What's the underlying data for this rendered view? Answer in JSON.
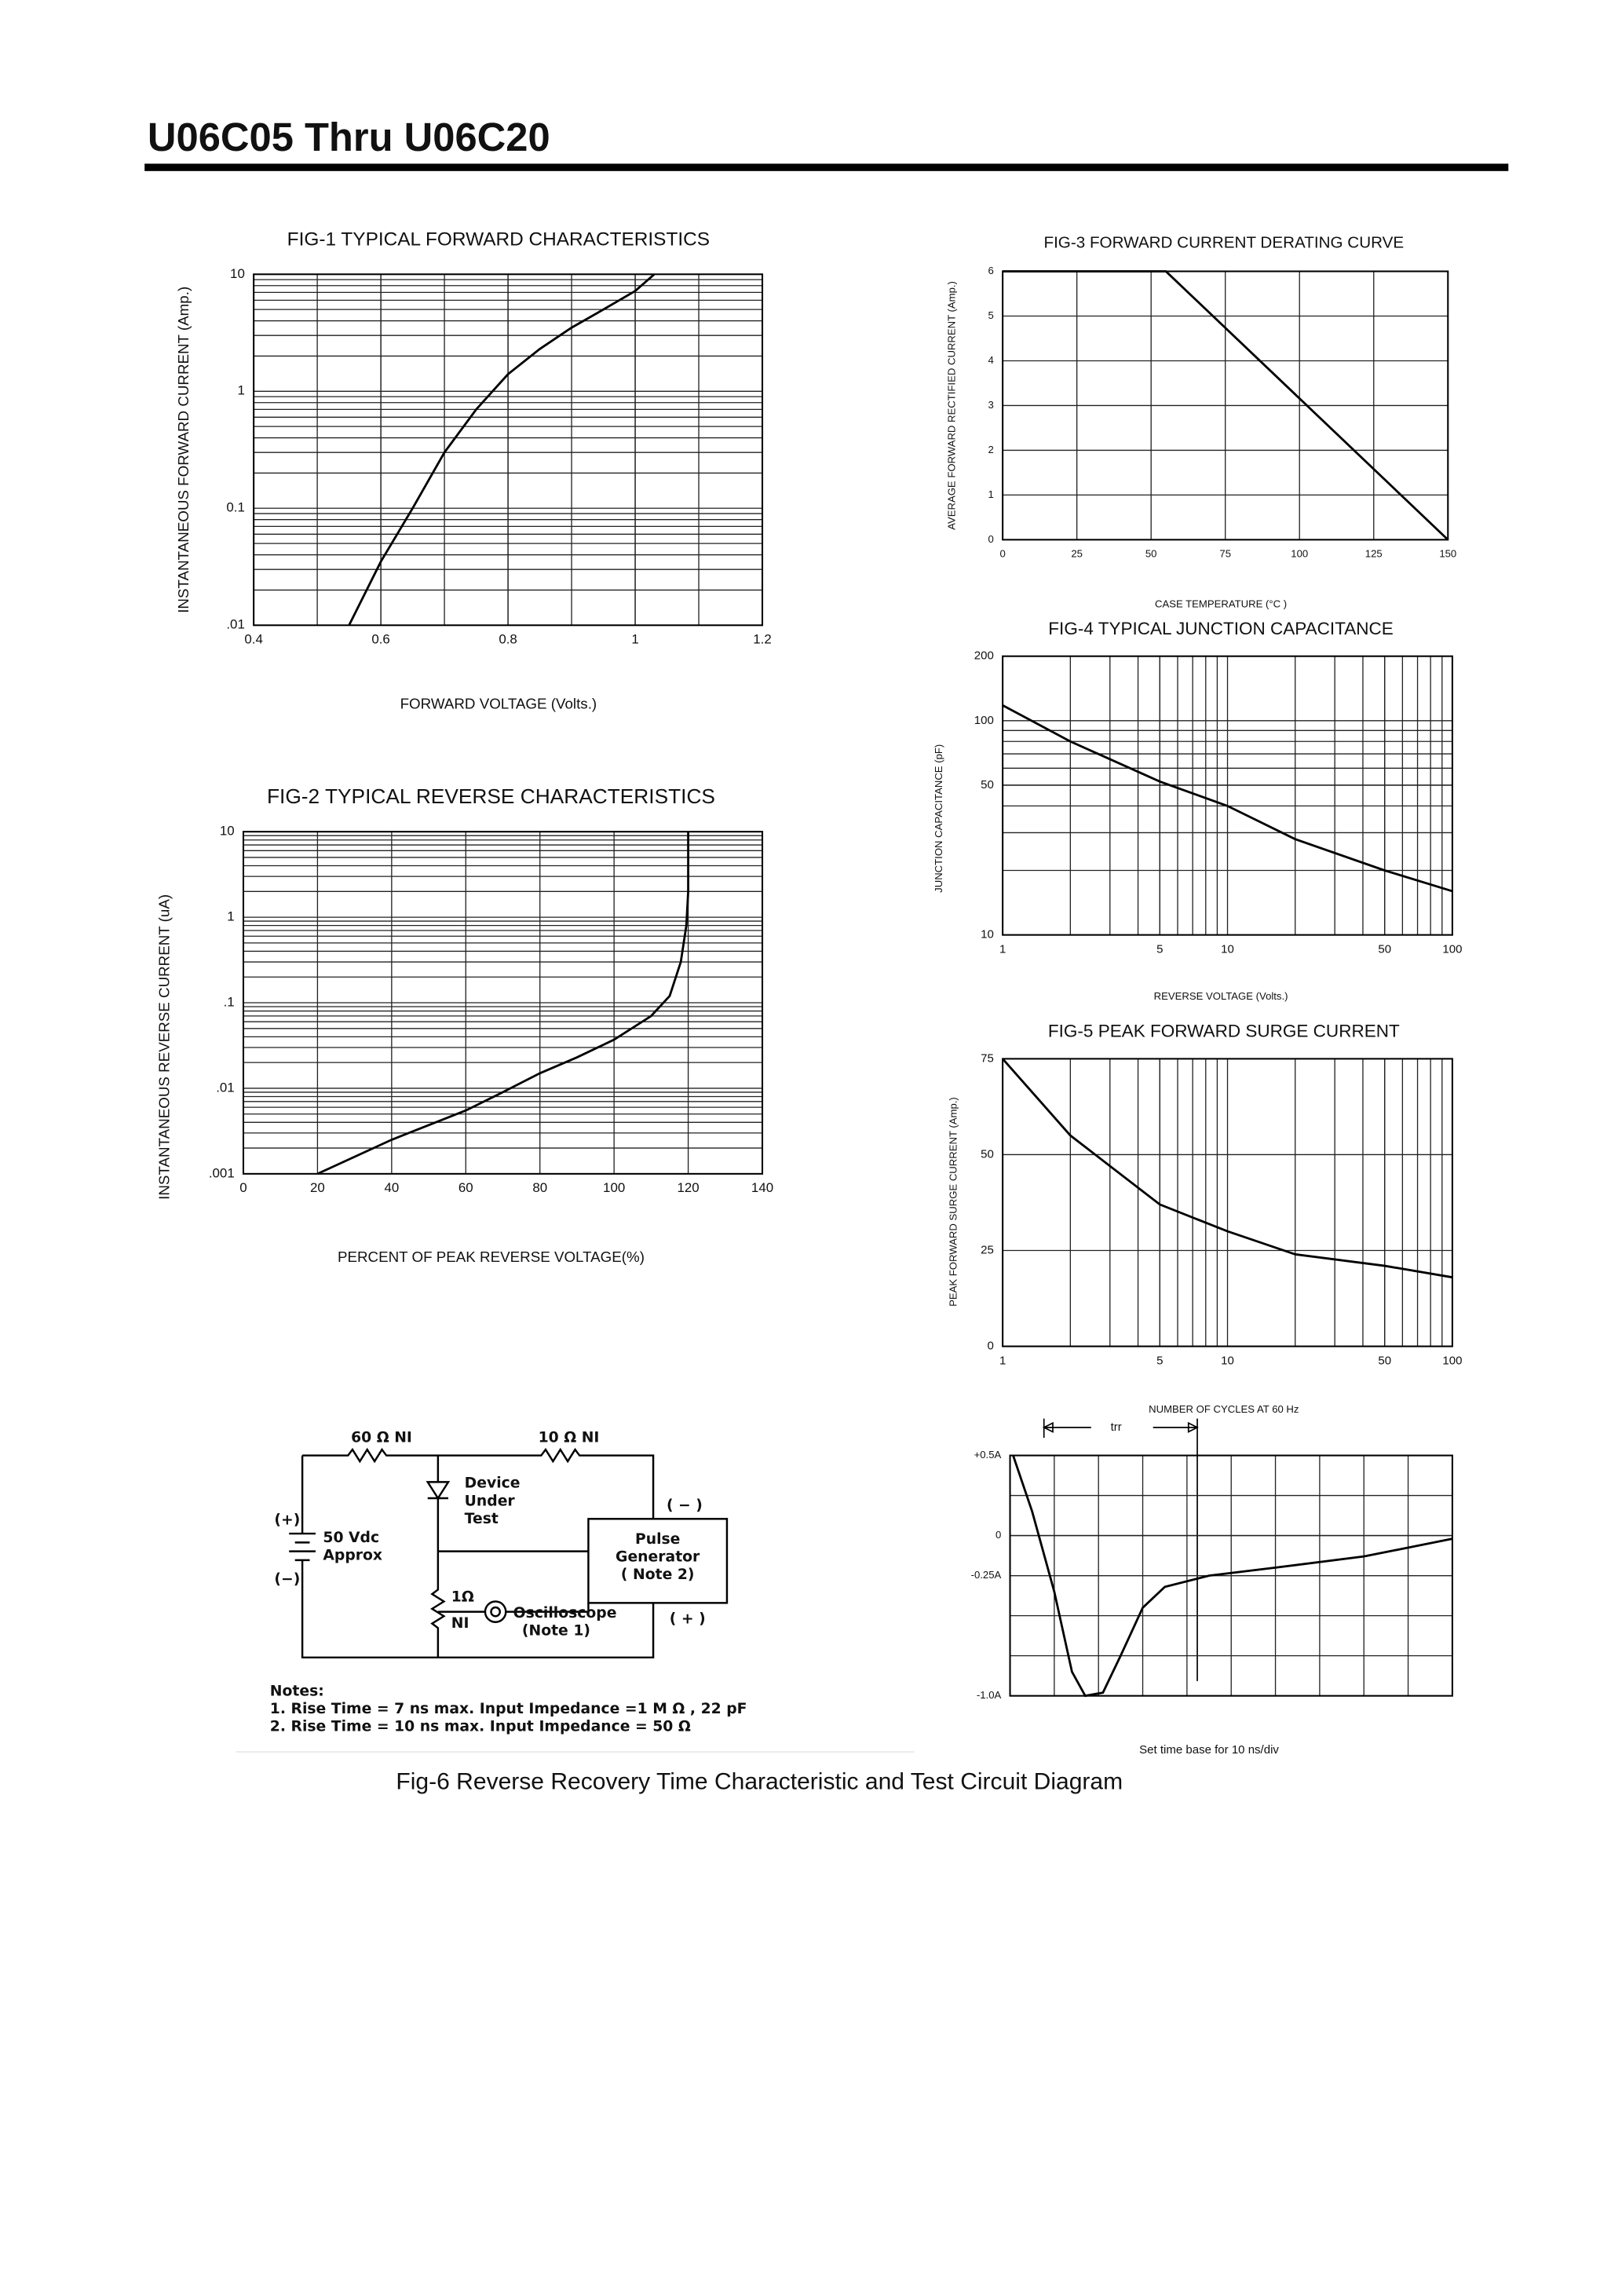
{
  "header": {
    "title": "U06C05 Thru U06C20"
  },
  "chart_data": [
    {
      "type": "line",
      "title": "FIG-1 TYPICAL FORWARD CHARACTERISTICS",
      "xlabel": "FORWARD VOLTAGE (Volts.)",
      "ylabel": "INSTANTANEOUS FORWARD CURRENT (Amp.)",
      "x": [
        0.55,
        0.6,
        0.65,
        0.7,
        0.75,
        0.8,
        0.85,
        0.9,
        0.95,
        1.0,
        1.03
      ],
      "values": [
        0.01,
        0.035,
        0.1,
        0.3,
        0.7,
        1.4,
        2.3,
        3.5,
        5.0,
        7.2,
        10
      ],
      "color": "#000000",
      "xlim": [
        0.4,
        1.2
      ],
      "xticks": [
        0.4,
        0.6,
        0.8,
        1,
        1.2
      ],
      "minor_x": 0.1,
      "ylim": [
        0.01,
        10
      ],
      "ylog": true,
      "yticks": [
        {
          "value": 0.01,
          "label": ".01"
        },
        0.1,
        1,
        10
      ],
      "grid": true
    },
    {
      "type": "line",
      "title": "FIG-2 TYPICAL REVERSE CHARACTERISTICS",
      "xlabel": "PERCENT OF PEAK REVERSE VOLTAGE(%)",
      "ylabel": "INSTANTANEOUS REVERSE CURRENT (uA)",
      "x": [
        20,
        40,
        60,
        70,
        80,
        90,
        100,
        110,
        115,
        118,
        119.5,
        120,
        120
      ],
      "values": [
        0.001,
        0.0025,
        0.0055,
        0.009,
        0.015,
        0.023,
        0.037,
        0.07,
        0.12,
        0.3,
        0.8,
        2,
        10
      ],
      "color": "#000000",
      "xlim": [
        0,
        140
      ],
      "xticks": [
        0,
        20,
        40,
        60,
        80,
        100,
        120,
        140
      ],
      "ylim": [
        0.001,
        10
      ],
      "ylog": true,
      "yticks": [
        {
          "value": 0.001,
          "label": ".001"
        },
        {
          "value": 0.01,
          "label": ".01"
        },
        {
          "value": 0.1,
          "label": ".1"
        },
        1,
        10
      ],
      "grid": true
    },
    {
      "type": "line",
      "title": "FIG-3 FORWARD CURRENT DERATING CURVE",
      "xlabel": "CASE TEMPERATURE (°C )",
      "ylabel": "AVERAGE FORWARD RECTIFIED CURRENT (Amp.)",
      "x": [
        0,
        55,
        150
      ],
      "values": [
        6,
        6,
        0
      ],
      "color": "#000000",
      "xlim": [
        0,
        150
      ],
      "xticks": [
        0,
        25,
        50,
        75,
        100,
        125,
        150
      ],
      "ylim": [
        0,
        6
      ],
      "yticks": [
        0,
        1,
        2,
        3,
        4,
        5,
        6
      ],
      "grid": true
    },
    {
      "type": "line",
      "title": "FIG-4 TYPICAL JUNCTION CAPACITANCE",
      "xlabel": "REVERSE VOLTAGE (Volts.)",
      "ylabel": "JUNCTION CAPACITANCE (pF)",
      "x": [
        1,
        2,
        5,
        10,
        20,
        50,
        100
      ],
      "values": [
        118,
        80,
        52,
        40,
        28,
        20,
        16
      ],
      "color": "#000000",
      "xlim": [
        1,
        100
      ],
      "xlog": true,
      "xticks": [
        1,
        5,
        10,
        50,
        100
      ],
      "ylim": [
        10,
        200
      ],
      "ylog": true,
      "yticks": [
        10,
        50,
        100,
        200
      ],
      "grid": true
    },
    {
      "type": "line",
      "title": "FIG-5 PEAK FORWARD SURGE CURRENT",
      "xlabel": "NUMBER OF CYCLES AT 60 Hz",
      "ylabel": "PEAK FORWARD SURGE CURRENT (Amp.)",
      "x": [
        1,
        2,
        5,
        10,
        20,
        50,
        100
      ],
      "values": [
        75,
        55,
        37,
        30,
        24,
        21,
        18
      ],
      "color": "#000000",
      "xlim": [
        1,
        100
      ],
      "xlog": true,
      "xticks": [
        1,
        5,
        10,
        50,
        100
      ],
      "ylim": [
        0,
        75
      ],
      "yticks": [
        0,
        25,
        50,
        75
      ],
      "grid": true
    },
    {
      "type": "line",
      "annotation": "trr",
      "note": "Set time base for 10 ns/div",
      "x": [
        0.07,
        0.5,
        1,
        1.4,
        1.7,
        2.1,
        2.5,
        3,
        3.5,
        4.5,
        6,
        8,
        10
      ],
      "values": [
        0.5,
        0.15,
        -0.35,
        -0.85,
        -1.0,
        -0.98,
        -0.75,
        -0.45,
        -0.32,
        -0.25,
        -0.2,
        -0.13,
        -0.02
      ],
      "color": "#000000",
      "xlim": [
        0,
        10
      ],
      "minor_x": 1,
      "ylim": [
        -1.0,
        0.5
      ],
      "yticks": [
        {
          "value": 0.5,
          "label": "+0.5A"
        },
        0,
        {
          "value": -0.25,
          "label": "-0.25A"
        },
        {
          "value": -1.0,
          "label": "-1.0A"
        }
      ],
      "minor_y": 0.25,
      "grid": true
    }
  ],
  "circuit": {
    "r1": "60 Ω  NI",
    "r2": "10 Ω  NI",
    "dut": [
      "Device",
      "Under",
      "Test"
    ],
    "gen_minus": "( − )",
    "gen": [
      "Pulse",
      "Generator",
      "( Note 2)"
    ],
    "gen_plus": "( + )",
    "bat_plus": "(+)",
    "bat": [
      "50 Vdc",
      "Approx"
    ],
    "bat_minus": "(−)",
    "r3": "1Ω",
    "r3b": "NI",
    "scope": [
      "Oscilloscope",
      "(Note 1)"
    ],
    "notes": [
      "Notes:",
      "1. Rise Time = 7 ns max. Input Impedance =1 M Ω , 22 pF",
      "2. Rise Time = 10 ns max. Input Impedance = 50 Ω"
    ]
  },
  "caption": "Fig-6 Reverse Recovery Time Characteristic and Test Circuit Diagram"
}
